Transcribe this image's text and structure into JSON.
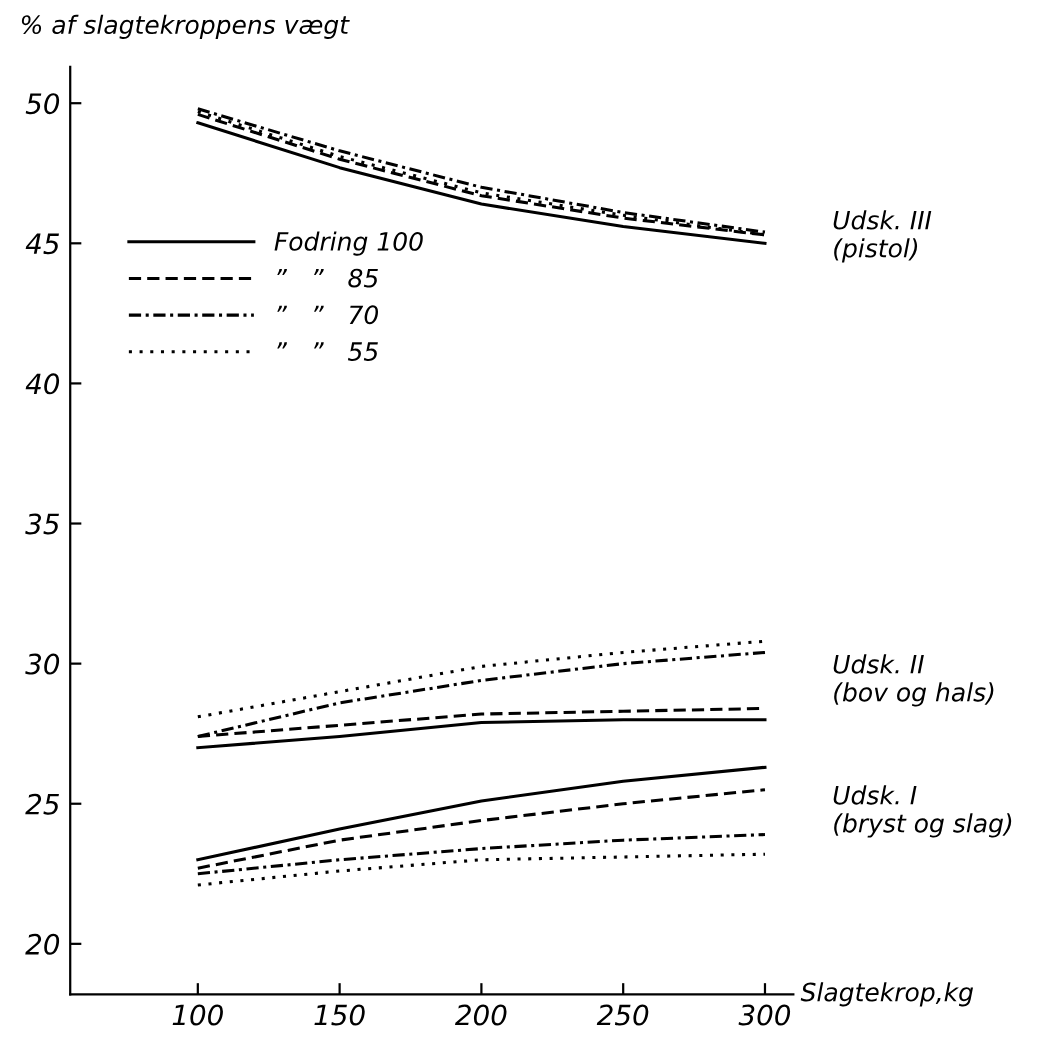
{
  "chart_data": {
    "type": "line",
    "ylabel": "% af slagtekroppens vægt",
    "xlabel": "Slagtekrop,kg",
    "x": [
      100,
      150,
      200,
      250,
      300
    ],
    "series": [
      {
        "name": "Fodring 100",
        "color": "#000000",
        "line_style": "solid",
        "values": [
          49.3,
          47.7,
          46.4,
          45.6,
          45.0
        ]
      },
      {
        "name": "”   ”   85",
        "color": "#000000",
        "line_style": "dashed",
        "values": [
          49.6,
          48.0,
          46.7,
          45.9,
          45.3
        ]
      },
      {
        "name": "”   ”   70",
        "color": "#000000",
        "line_style": "dashdot",
        "values": [
          49.8,
          48.3,
          47.0,
          46.1,
          45.4
        ]
      },
      {
        "name": "”   ”   55",
        "color": "#000000",
        "line_style": "dotted",
        "values": [
          49.7,
          48.1,
          46.8,
          46.0,
          45.3
        ]
      },
      {
        "color": "#000000",
        "line_style": "solid",
        "values": [
          27.0,
          27.4,
          27.9,
          28.0,
          28.0
        ]
      },
      {
        "color": "#000000",
        "line_style": "dashed",
        "values": [
          27.4,
          27.8,
          28.2,
          28.3,
          28.4
        ]
      },
      {
        "color": "#000000",
        "line_style": "dashdot",
        "values": [
          27.4,
          28.6,
          29.4,
          30.0,
          30.4
        ]
      },
      {
        "color": "#000000",
        "line_style": "dotted",
        "values": [
          28.1,
          29.0,
          29.9,
          30.4,
          30.8
        ]
      },
      {
        "color": "#000000",
        "line_style": "solid",
        "values": [
          23.0,
          24.1,
          25.1,
          25.8,
          26.3
        ]
      },
      {
        "color": "#000000",
        "line_style": "dashed",
        "values": [
          22.7,
          23.7,
          24.4,
          25.0,
          25.5
        ]
      },
      {
        "color": "#000000",
        "line_style": "dashdot",
        "values": [
          22.5,
          23.0,
          23.4,
          23.7,
          23.9
        ]
      },
      {
        "color": "#000000",
        "line_style": "dotted",
        "values": [
          22.1,
          22.6,
          23.0,
          23.1,
          23.2
        ]
      }
    ],
    "annotations": [
      "Udsk. III\n(pistol)",
      "Udsk. II\n(bov og hals)",
      "Udsk. I\n(bryst og slag)"
    ],
    "xlim": [
      55,
      310
    ],
    "ylim": [
      18.2,
      51.3
    ],
    "xticks": [
      100,
      150,
      200,
      250,
      300
    ],
    "yticks": [
      20,
      25,
      30,
      35,
      40,
      45,
      50
    ],
    "grid": false,
    "legend": "left",
    "marker": "none"
  }
}
